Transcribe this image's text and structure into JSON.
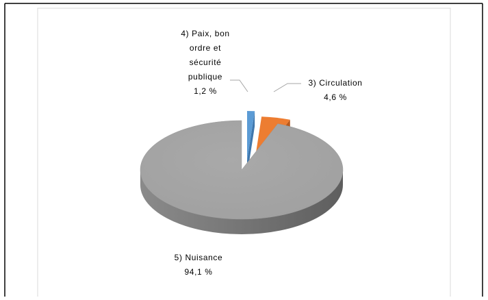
{
  "chart_data": {
    "type": "pie3d",
    "categories": [
      "4) Paix, bon ordre et sécurité publique",
      "3) Circulation",
      "5) Nuisance"
    ],
    "values": [
      1.2,
      4.6,
      94.1
    ],
    "value_labels": [
      "1,2 %",
      "4,6 %",
      "94,1 %"
    ],
    "colors": [
      "#5b9bd5",
      "#ed7d31",
      "#a5a5a5"
    ]
  }
}
